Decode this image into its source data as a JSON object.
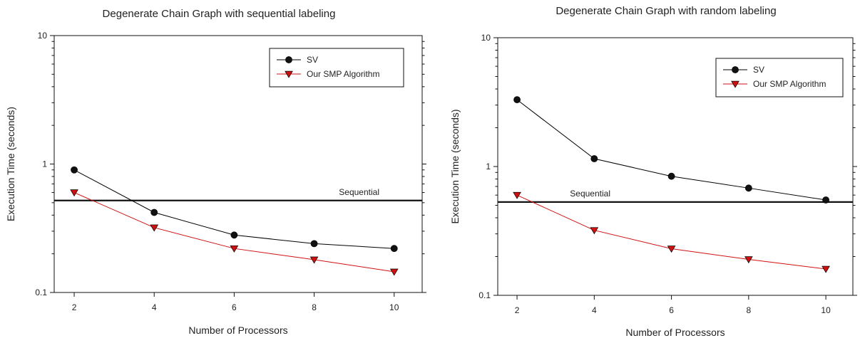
{
  "chart_data": [
    {
      "type": "line",
      "title": "Degenerate Chain Graph with sequential labeling",
      "xlabel": "Number of Processors",
      "ylabel": "Execution Time (seconds)",
      "yscale": "log",
      "ylim": [
        0.1,
        10
      ],
      "xlim": [
        1.5,
        10.7
      ],
      "xticks": [
        2,
        4,
        6,
        8,
        10
      ],
      "xtick_labels": [
        "2",
        "4",
        "6",
        "8",
        "10"
      ],
      "yticks": [
        0.1,
        1,
        10
      ],
      "ytick_labels": [
        "0.1",
        "1",
        "10"
      ],
      "grid": false,
      "legend_position": "top-right",
      "series": [
        {
          "name": "SV",
          "x": [
            2,
            4,
            6,
            8,
            10
          ],
          "values": [
            0.9,
            0.42,
            0.28,
            0.24,
            0.22
          ],
          "color": "#000000",
          "marker": "circle"
        },
        {
          "name": "Our SMP Algorithm",
          "x": [
            2,
            4,
            6,
            8,
            10
          ],
          "values": [
            0.6,
            0.32,
            0.22,
            0.18,
            0.145
          ],
          "color": "#d01010",
          "marker": "triangle-down"
        }
      ],
      "reference_line": {
        "label": "Sequential",
        "value": 0.52
      }
    },
    {
      "type": "line",
      "title": "Degenerate Chain Graph with random labeling",
      "xlabel": "Number of Processors",
      "ylabel": "Execution Time (seconds)",
      "yscale": "log",
      "ylim": [
        0.1,
        10
      ],
      "xlim": [
        1.5,
        10.7
      ],
      "xticks": [
        2,
        4,
        6,
        8,
        10
      ],
      "xtick_labels": [
        "2",
        "4",
        "6",
        "8",
        "10"
      ],
      "yticks": [
        0.1,
        1,
        10
      ],
      "ytick_labels": [
        "0.1",
        "1",
        "10"
      ],
      "grid": false,
      "legend_position": "top-right",
      "series": [
        {
          "name": "SV",
          "x": [
            2,
            4,
            6,
            8,
            10
          ],
          "values": [
            3.3,
            1.15,
            0.84,
            0.68,
            0.55
          ],
          "color": "#000000",
          "marker": "circle"
        },
        {
          "name": "Our SMP Algorithm",
          "x": [
            2,
            4,
            6,
            8,
            10
          ],
          "values": [
            0.6,
            0.32,
            0.23,
            0.19,
            0.16
          ],
          "color": "#d01010",
          "marker": "triangle-down"
        }
      ],
      "reference_line": {
        "label": "Sequential",
        "value": 0.53
      }
    }
  ]
}
